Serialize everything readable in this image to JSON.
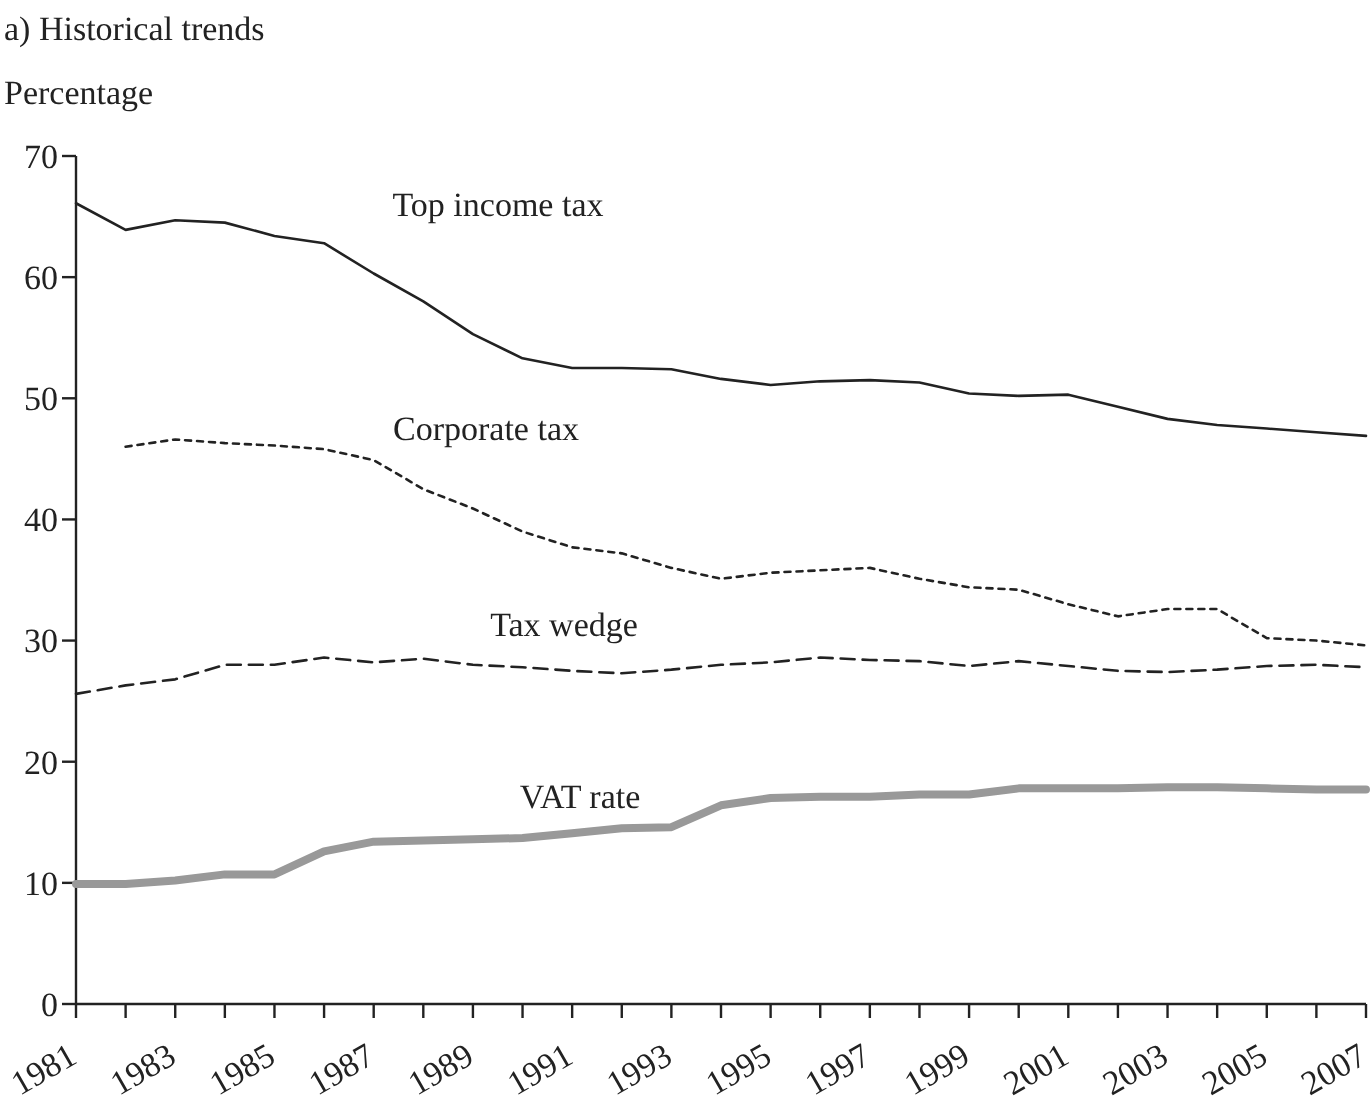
{
  "chart_data": {
    "type": "line",
    "title": "a) Historical trends",
    "ylabel": "Percentage",
    "x": [
      1981,
      1982,
      1983,
      1984,
      1985,
      1986,
      1987,
      1988,
      1989,
      1990,
      1991,
      1992,
      1993,
      1994,
      1995,
      1996,
      1997,
      1998,
      1999,
      2000,
      2001,
      2002,
      2003,
      2004,
      2005,
      2006,
      2007
    ],
    "series": [
      {
        "name": "Top income tax",
        "color": "#222222",
        "line_style": "solid",
        "values": [
          66.1,
          63.9,
          64.7,
          64.5,
          63.4,
          62.8,
          60.3,
          58.0,
          55.3,
          53.3,
          52.5,
          52.5,
          52.4,
          51.6,
          51.1,
          51.4,
          51.5,
          51.3,
          50.4,
          50.2,
          50.3,
          49.3,
          48.3,
          47.8,
          47.5,
          47.2,
          46.9
        ]
      },
      {
        "name": "Corporate tax",
        "color": "#222222",
        "line_style": "dotted",
        "values": [
          null,
          46.0,
          46.6,
          46.3,
          46.1,
          45.8,
          44.9,
          42.5,
          40.9,
          39.0,
          37.7,
          37.2,
          36.0,
          35.1,
          35.6,
          35.8,
          36.0,
          35.1,
          34.4,
          34.2,
          33.0,
          32.0,
          32.6,
          32.6,
          30.2,
          30.0,
          29.6
        ]
      },
      {
        "name": "Tax wedge",
        "color": "#222222",
        "line_style": "dashed",
        "values": [
          25.6,
          26.3,
          26.8,
          28.0,
          28.0,
          28.6,
          28.2,
          28.5,
          28.0,
          27.8,
          27.5,
          27.3,
          27.6,
          28.0,
          28.2,
          28.6,
          28.4,
          28.3,
          27.9,
          28.3,
          27.9,
          27.5,
          27.4,
          27.6,
          27.9,
          28.0,
          27.8
        ]
      },
      {
        "name": "VAT rate",
        "color": "#999999",
        "line_style": "solid",
        "values": [
          9.9,
          9.9,
          10.2,
          10.7,
          10.7,
          12.6,
          13.4,
          13.5,
          13.6,
          13.7,
          14.1,
          14.5,
          14.6,
          16.4,
          17.0,
          17.1,
          17.1,
          17.3,
          17.3,
          17.8,
          17.8,
          17.8,
          17.9,
          17.9,
          17.8,
          17.7,
          17.7
        ]
      }
    ],
    "xlim": [
      1981,
      2007
    ],
    "xticks": [
      1981,
      {
        "value": 1982,
        "label": null
      },
      1983,
      {
        "value": 1984,
        "label": null
      },
      1985,
      {
        "value": 1986,
        "label": null
      },
      1987,
      {
        "value": 1988,
        "label": null
      },
      1989,
      {
        "value": 1990,
        "label": null
      },
      1991,
      {
        "value": 1992,
        "label": null
      },
      1993,
      {
        "value": 1994,
        "label": null
      },
      1995,
      {
        "value": 1996,
        "label": null
      },
      1997,
      {
        "value": 1998,
        "label": null
      },
      1999,
      {
        "value": 2000,
        "label": null
      },
      2001,
      {
        "value": 2002,
        "label": null
      },
      2003,
      {
        "value": 2004,
        "label": null
      },
      2005,
      {
        "value": 2006,
        "label": null
      },
      2007
    ],
    "ylim": [
      0,
      70
    ],
    "yticks": [
      0,
      10,
      20,
      30,
      40,
      50,
      60,
      70
    ],
    "grid": false,
    "marker": "none"
  }
}
